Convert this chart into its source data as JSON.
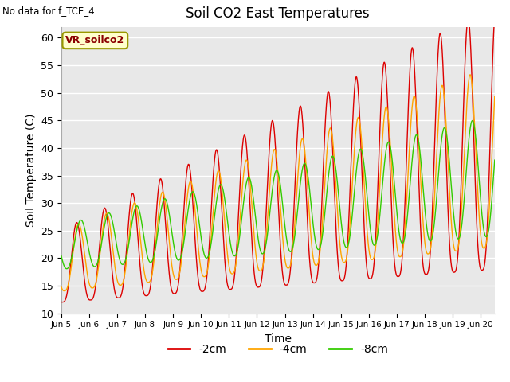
{
  "title": "Soil CO2 East Temperatures",
  "xlabel": "Time",
  "ylabel": "Soil Temperature (C)",
  "note": "No data for f_TCE_4",
  "legend_label": "VR_soilco2",
  "ylim": [
    10,
    62
  ],
  "xlim": [
    0,
    15.5
  ],
  "series": {
    "-2cm": {
      "color": "#dd0000",
      "label": "-2cm"
    },
    "-4cm": {
      "color": "#ffa500",
      "label": "-4cm"
    },
    "-8cm": {
      "color": "#33cc00",
      "label": "-8cm"
    }
  },
  "bg_color": "#e8e8e8",
  "xtick_labels": [
    "Jun 5",
    "Jun 6",
    "Jun 7",
    "Jun 8",
    "Jun 9",
    "Jun 10",
    "Jun 11",
    "Jun 12",
    "Jun 13",
    "Jun 14",
    "Jun 15",
    "Jun 16",
    "Jun 17",
    "Jun 18",
    "Jun 19",
    "Jun 20"
  ],
  "grid_color": "white",
  "yticks": [
    10,
    15,
    20,
    25,
    30,
    35,
    40,
    45,
    50,
    55,
    60
  ]
}
